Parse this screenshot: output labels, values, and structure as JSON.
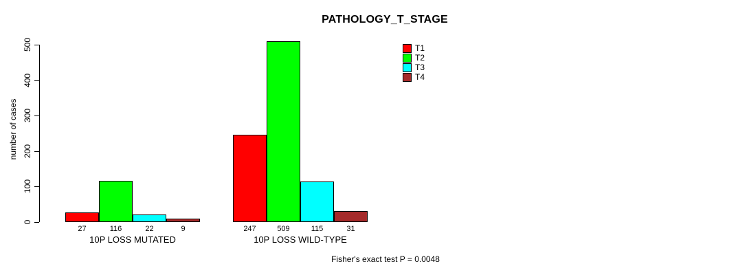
{
  "title": "PATHOLOGY_T_STAGE",
  "footer": "Fisher's exact test P = 0.0048",
  "chart_data": {
    "type": "bar",
    "title": "PATHOLOGY_T_STAGE",
    "xlabel": "",
    "ylabel": "number of cases",
    "ylim": [
      0,
      500
    ],
    "yticks": [
      0,
      100,
      200,
      300,
      400,
      500
    ],
    "grid": false,
    "legend_position": "top-right",
    "bar_value_labels_shown": true,
    "categories": [
      "10P LOSS MUTATED",
      "10P LOSS WILD-TYPE"
    ],
    "series": [
      {
        "name": "T1",
        "color": "#FF0000",
        "values": [
          27,
          247
        ]
      },
      {
        "name": "T2",
        "color": "#00FF00",
        "values": [
          116,
          509
        ]
      },
      {
        "name": "T3",
        "color": "#00FFFF",
        "values": [
          22,
          115
        ]
      },
      {
        "name": "T4",
        "color": "#A52A2A",
        "values": [
          9,
          31
        ]
      }
    ],
    "annotation": "Fisher's exact test P = 0.0048"
  }
}
